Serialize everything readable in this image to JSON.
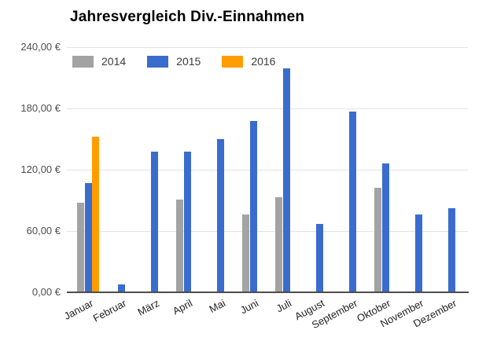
{
  "chart_data": {
    "type": "bar",
    "title": "Jahresvergleich Div.-Einnahmen",
    "xlabel": "",
    "ylabel": "",
    "currency_format": "de-DE EUR",
    "categories": [
      "Januar",
      "Februar",
      "März",
      "April",
      "Mai",
      "Juni",
      "Juli",
      "August",
      "September",
      "Oktober",
      "November",
      "Dezember"
    ],
    "series": [
      {
        "name": "2014",
        "color": "#a3a3a3",
        "values": [
          88,
          0,
          0,
          91,
          0,
          76,
          93,
          0,
          0,
          102,
          0,
          0
        ]
      },
      {
        "name": "2015",
        "color": "#3a6cce",
        "values": [
          107,
          8,
          138,
          138,
          150,
          168,
          219,
          67,
          177,
          126,
          76,
          82
        ]
      },
      {
        "name": "2016",
        "color": "#ff9d00",
        "values": [
          152,
          0,
          0,
          0,
          0,
          0,
          0,
          0,
          0,
          0,
          0,
          0
        ]
      }
    ],
    "ylim": [
      0,
      240
    ],
    "yticks": [
      {
        "value": 0,
        "label": "0,00 €"
      },
      {
        "value": 60,
        "label": "60,00 €"
      },
      {
        "value": 120,
        "label": "120,00 €"
      },
      {
        "value": 180,
        "label": "180,00 €"
      },
      {
        "value": 240,
        "label": "240,00 €"
      }
    ],
    "grid": true,
    "legend_position": "inside-top-left",
    "colors": {
      "gridline": "#e3e3e3",
      "axis_line": "#4d4d4d",
      "title_text": "#000000",
      "tick_text": "#4e4e4e",
      "background": "#ffffff"
    }
  }
}
